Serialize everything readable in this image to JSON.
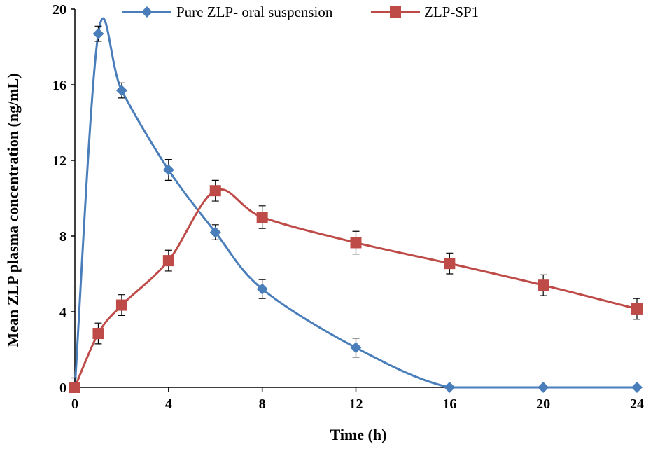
{
  "chart_data": {
    "type": "line",
    "title": "",
    "xlabel": "Time (h)",
    "ylabel": "Mean ZLP plasma concentration  (ng/mL)",
    "xlim": [
      0,
      24
    ],
    "ylim": [
      0,
      20
    ],
    "xticks": [
      0,
      4,
      8,
      12,
      16,
      20,
      24
    ],
    "yticks": [
      0,
      4,
      8,
      12,
      16,
      20
    ],
    "xtick_labels": [
      "0",
      "4",
      "8",
      "12",
      "16",
      "20",
      "24"
    ],
    "ytick_labels": [
      "0",
      "4",
      "8",
      "12",
      "16",
      "20"
    ],
    "grid": false,
    "legend_position": "top",
    "x": [
      0,
      1,
      2,
      4,
      6,
      8,
      12,
      16,
      20,
      24
    ],
    "series": [
      {
        "name": "Pure ZLP- oral suspension",
        "color": "#4a7ebb",
        "marker": "diamond",
        "values": [
          0,
          18.7,
          15.7,
          11.5,
          8.2,
          5.2,
          2.1,
          0,
          0,
          0
        ],
        "errors": [
          0.5,
          0.4,
          0.4,
          0.55,
          0.4,
          0.5,
          0.5,
          0,
          0,
          0
        ]
      },
      {
        "name": "ZLP-SP1",
        "color": "#be4b48",
        "marker": "square",
        "values": [
          0,
          2.85,
          4.35,
          6.7,
          10.4,
          9.0,
          7.65,
          6.55,
          5.4,
          4.15
        ],
        "errors": [
          0,
          0.55,
          0.55,
          0.55,
          0.55,
          0.6,
          0.6,
          0.55,
          0.55,
          0.55
        ]
      }
    ]
  }
}
